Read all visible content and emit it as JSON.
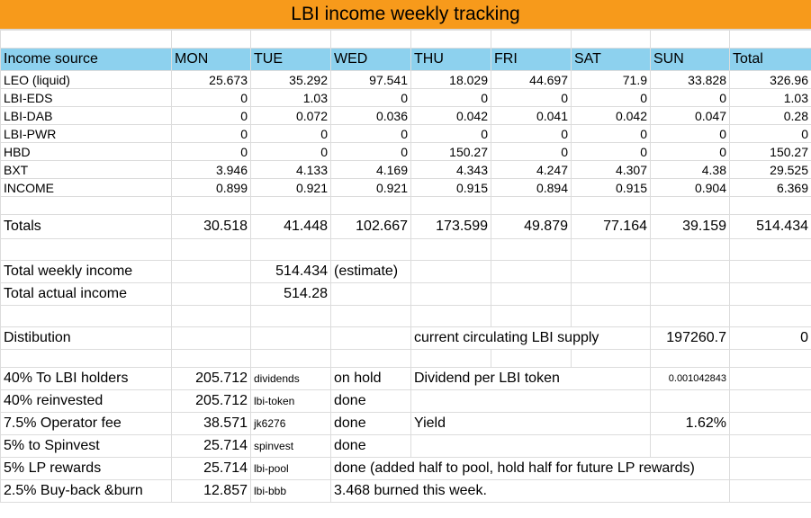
{
  "title": "LBI income weekly tracking",
  "header": [
    "Income source",
    "MON",
    "TUE",
    "WED",
    "THU",
    "FRI",
    "SAT",
    "SUN",
    "Total"
  ],
  "sources": [
    {
      "name": "LEO (liquid)",
      "values": [
        "25.673",
        "35.292",
        "97.541",
        "18.029",
        "44.697",
        "71.9",
        "33.828",
        "326.96"
      ]
    },
    {
      "name": "LBI-EDS",
      "values": [
        "0",
        "1.03",
        "0",
        "0",
        "0",
        "0",
        "0",
        "1.03"
      ]
    },
    {
      "name": "LBI-DAB",
      "values": [
        "0",
        "0.072",
        "0.036",
        "0.042",
        "0.041",
        "0.042",
        "0.047",
        "0.28"
      ]
    },
    {
      "name": "LBI-PWR",
      "values": [
        "0",
        "0",
        "0",
        "0",
        "0",
        "0",
        "0",
        "0"
      ]
    },
    {
      "name": "HBD",
      "values": [
        "0",
        "0",
        "0",
        "150.27",
        "0",
        "0",
        "0",
        "150.27"
      ]
    },
    {
      "name": "BXT",
      "values": [
        "3.946",
        "4.133",
        "4.169",
        "4.343",
        "4.247",
        "4.307",
        "4.38",
        "29.525"
      ]
    },
    {
      "name": "INCOME",
      "values": [
        "0.899",
        "0.921",
        "0.921",
        "0.915",
        "0.894",
        "0.915",
        "0.904",
        "6.369"
      ]
    }
  ],
  "totals": {
    "label": "Totals",
    "values": [
      "30.518",
      "41.448",
      "102.667",
      "173.599",
      "49.879",
      "77.164",
      "39.159",
      "514.434"
    ]
  },
  "weekly": {
    "label": "Total weekly income",
    "value": "514.434",
    "note": "(estimate)"
  },
  "actual": {
    "label": "Total actual income",
    "value": "514.28"
  },
  "distribution": {
    "label": "Distibution",
    "supply_label": "current circulating LBI supply",
    "supply_value": "197260.7",
    "supply_extra": "0"
  },
  "dist_rows": [
    {
      "label": "40% To LBI holders",
      "amount": "205.712",
      "account": "dividends",
      "status": "on hold",
      "extra_label": "Dividend per LBI token",
      "extra_value": "0.001042843"
    },
    {
      "label": "40% reinvested",
      "amount": "205.712",
      "account": "lbi-token",
      "status": "done",
      "extra_label": "",
      "extra_value": ""
    },
    {
      "label": "7.5% Operator fee",
      "amount": "38.571",
      "account": "jk6276",
      "status": "done",
      "extra_label": "Yield",
      "extra_value": "1.62%"
    },
    {
      "label": "5% to Spinvest",
      "amount": "25.714",
      "account": "spinvest",
      "status": "done",
      "extra_label": "",
      "extra_value": ""
    },
    {
      "label": "5% LP rewards",
      "amount": "25.714",
      "account": "lbi-pool",
      "status": "done (added half to pool, hold half for future LP rewards)",
      "extra_label": "",
      "extra_value": ""
    },
    {
      "label": "2.5% Buy-back &burn",
      "amount": "12.857",
      "account": "lbi-bbb",
      "status": "3.468 burned this week.",
      "extra_label": "",
      "extra_value": ""
    }
  ]
}
